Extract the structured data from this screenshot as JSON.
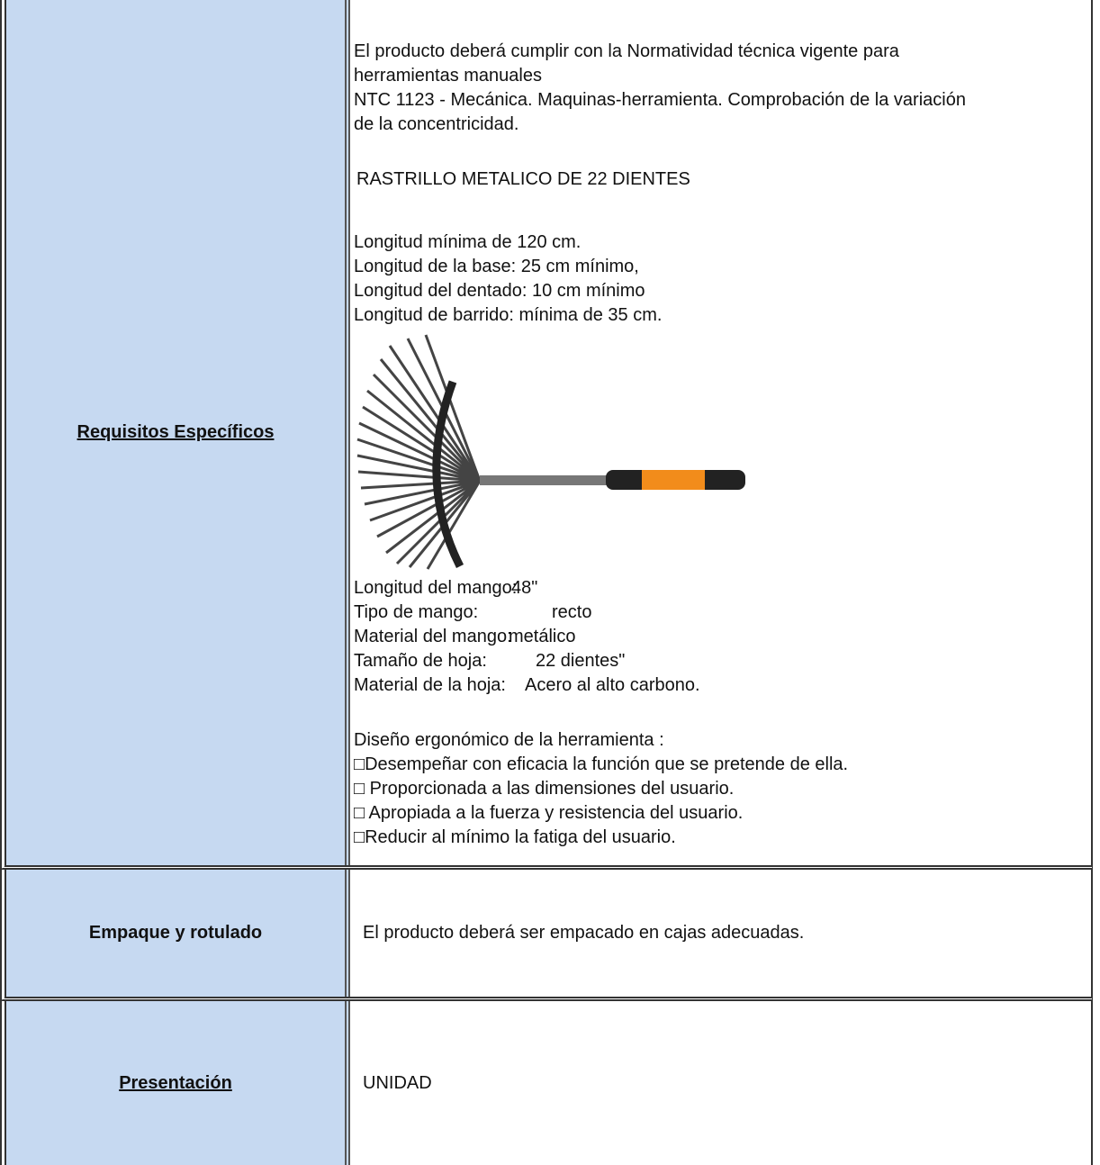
{
  "rows": [
    {
      "label": "Requisitos Específicos",
      "intro": [
        "El producto deberá cumplir con la Normatividad técnica vigente para",
        "herramientas manuales",
        "NTC 1123 - Mecánica. Maquinas-herramienta. Comprobación de la variación",
        "de la concentricidad."
      ],
      "product": "RASTRILLO METALICO DE 22 DIENTES",
      "dimensions": [
        "Longitud mínima de 120 cm.",
        "Longitud de la base: 25 cm mínimo,",
        "Longitud del dentado: 10 cm mínimo",
        "Longitud de barrido: mínima de 35 cm."
      ],
      "specs": [
        {
          "name": "Longitud del mango:",
          "value": "48\""
        },
        {
          "name": "Tipo de mango:",
          "value": "recto"
        },
        {
          "name": "Material del mango:",
          "value": "metálico"
        },
        {
          "name": "Tamaño de hoja:",
          "value": "22 dientes\""
        },
        {
          "name": "Material de la hoja:",
          "value": "Acero al alto carbono."
        }
      ],
      "ergonomics_title": "Diseño ergonómico de la herramienta :",
      "ergonomics": [
        "□Desempeñar con eficacia la función que se pretende de ella.",
        "□ Proporcionada a las dimensiones del usuario.",
        "□ Apropiada a la fuerza y resistencia del usuario.",
        "□Reducir al mínimo la fatiga del usuario."
      ]
    },
    {
      "label": "Empaque  y rotulado",
      "text": "El producto deberá ser empacado en cajas adecuadas."
    },
    {
      "label": "Presentación",
      "text": "UNIDAD"
    }
  ]
}
